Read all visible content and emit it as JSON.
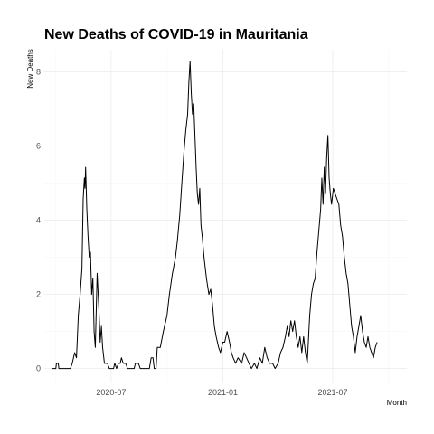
{
  "chart_data": {
    "type": "line",
    "title": "New Deaths of COVID-19 in Mauritania",
    "xlabel": "Month",
    "ylabel": "New Deaths",
    "xlim": [
      "2020-03-13",
      "2021-10-31"
    ],
    "ylim": [
      -0.4,
      8.6
    ],
    "x_ticks": [
      {
        "date": "2020-07-01",
        "label": "2020-07"
      },
      {
        "date": "2021-01-01",
        "label": "2021-01"
      },
      {
        "date": "2021-07-01",
        "label": "2021-07"
      }
    ],
    "y_ticks": [
      0,
      2,
      4,
      6,
      8
    ],
    "grid": true,
    "series": [
      {
        "color": "#000000",
        "points": [
          [
            "2020-03-26",
            0
          ],
          [
            "2020-04-01",
            0
          ],
          [
            "2020-04-02",
            0.14
          ],
          [
            "2020-04-05",
            0.14
          ],
          [
            "2020-04-06",
            0
          ],
          [
            "2020-04-25",
            0
          ],
          [
            "2020-04-28",
            0.14
          ],
          [
            "2020-05-02",
            0.43
          ],
          [
            "2020-05-05",
            0.29
          ],
          [
            "2020-05-08",
            1.43
          ],
          [
            "2020-05-11",
            2.0
          ],
          [
            "2020-05-14",
            2.7
          ],
          [
            "2020-05-16",
            4.57
          ],
          [
            "2020-05-18",
            5.14
          ],
          [
            "2020-05-19",
            4.86
          ],
          [
            "2020-05-20",
            5.43
          ],
          [
            "2020-05-22",
            4.3
          ],
          [
            "2020-05-24",
            3.57
          ],
          [
            "2020-05-26",
            3.0
          ],
          [
            "2020-05-28",
            3.14
          ],
          [
            "2020-05-30",
            2.0
          ],
          [
            "2020-06-01",
            2.43
          ],
          [
            "2020-06-03",
            1.0
          ],
          [
            "2020-06-05",
            0.57
          ],
          [
            "2020-06-08",
            2.57
          ],
          [
            "2020-06-11",
            1.57
          ],
          [
            "2020-06-13",
            0.71
          ],
          [
            "2020-06-15",
            1.14
          ],
          [
            "2020-06-17",
            0.57
          ],
          [
            "2020-06-20",
            0.14
          ],
          [
            "2020-06-25",
            0.14
          ],
          [
            "2020-06-28",
            0
          ],
          [
            "2020-07-05",
            0
          ],
          [
            "2020-07-07",
            0.14
          ],
          [
            "2020-07-10",
            0
          ],
          [
            "2020-07-13",
            0.14
          ],
          [
            "2020-07-16",
            0.14
          ],
          [
            "2020-07-18",
            0.29
          ],
          [
            "2020-07-21",
            0.14
          ],
          [
            "2020-07-25",
            0.14
          ],
          [
            "2020-07-28",
            0
          ],
          [
            "2020-08-08",
            0
          ],
          [
            "2020-08-10",
            0.14
          ],
          [
            "2020-08-15",
            0.14
          ],
          [
            "2020-08-18",
            0
          ],
          [
            "2020-09-02",
            0
          ],
          [
            "2020-09-05",
            0.29
          ],
          [
            "2020-09-08",
            0.29
          ],
          [
            "2020-09-10",
            0
          ],
          [
            "2020-09-13",
            0
          ],
          [
            "2020-09-15",
            0.57
          ],
          [
            "2020-09-20",
            0.57
          ],
          [
            "2020-09-25",
            1.0
          ],
          [
            "2020-10-01",
            1.43
          ],
          [
            "2020-10-05",
            2.0
          ],
          [
            "2020-10-10",
            2.57
          ],
          [
            "2020-10-15",
            3.0
          ],
          [
            "2020-10-18",
            3.43
          ],
          [
            "2020-10-22",
            4.14
          ],
          [
            "2020-10-26",
            5.14
          ],
          [
            "2020-10-29",
            5.86
          ],
          [
            "2020-11-01",
            6.43
          ],
          [
            "2020-11-04",
            6.86
          ],
          [
            "2020-11-06",
            7.71
          ],
          [
            "2020-11-08",
            8.29
          ],
          [
            "2020-11-10",
            7.43
          ],
          [
            "2020-11-12",
            6.86
          ],
          [
            "2020-11-14",
            7.14
          ],
          [
            "2020-11-16",
            6.29
          ],
          [
            "2020-11-18",
            5.43
          ],
          [
            "2020-11-20",
            4.71
          ],
          [
            "2020-11-22",
            4.43
          ],
          [
            "2020-11-24",
            4.86
          ],
          [
            "2020-11-26",
            3.86
          ],
          [
            "2020-11-28",
            3.57
          ],
          [
            "2020-12-01",
            3.0
          ],
          [
            "2020-12-05",
            2.43
          ],
          [
            "2020-12-09",
            2.0
          ],
          [
            "2020-12-12",
            2.14
          ],
          [
            "2020-12-15",
            1.71
          ],
          [
            "2020-12-18",
            1.14
          ],
          [
            "2020-12-21",
            0.86
          ],
          [
            "2020-12-25",
            0.57
          ],
          [
            "2020-12-28",
            0.43
          ],
          [
            "2021-01-01",
            0.71
          ],
          [
            "2021-01-04",
            0.71
          ],
          [
            "2021-01-08",
            1.0
          ],
          [
            "2021-01-12",
            0.71
          ],
          [
            "2021-01-15",
            0.43
          ],
          [
            "2021-01-18",
            0.29
          ],
          [
            "2021-01-22",
            0.14
          ],
          [
            "2021-01-26",
            0.29
          ],
          [
            "2021-02-01",
            0.14
          ],
          [
            "2021-02-05",
            0.43
          ],
          [
            "2021-02-09",
            0.29
          ],
          [
            "2021-02-13",
            0.14
          ],
          [
            "2021-02-17",
            0
          ],
          [
            "2021-02-22",
            0.14
          ],
          [
            "2021-02-26",
            0
          ],
          [
            "2021-03-03",
            0.29
          ],
          [
            "2021-03-07",
            0.14
          ],
          [
            "2021-03-11",
            0.57
          ],
          [
            "2021-03-15",
            0.29
          ],
          [
            "2021-03-19",
            0.14
          ],
          [
            "2021-03-24",
            0.14
          ],
          [
            "2021-03-28",
            0
          ],
          [
            "2021-04-02",
            0.14
          ],
          [
            "2021-04-06",
            0.43
          ],
          [
            "2021-04-10",
            0.57
          ],
          [
            "2021-04-14",
            0.86
          ],
          [
            "2021-04-17",
            1.14
          ],
          [
            "2021-04-20",
            0.86
          ],
          [
            "2021-04-23",
            1.29
          ],
          [
            "2021-04-26",
            1.0
          ],
          [
            "2021-04-29",
            1.29
          ],
          [
            "2021-05-02",
            0.86
          ],
          [
            "2021-05-05",
            0.57
          ],
          [
            "2021-05-08",
            0.86
          ],
          [
            "2021-05-11",
            0.43
          ],
          [
            "2021-05-14",
            0.86
          ],
          [
            "2021-05-17",
            0.43
          ],
          [
            "2021-05-20",
            0.14
          ],
          [
            "2021-05-24",
            1.43
          ],
          [
            "2021-05-27",
            2.0
          ],
          [
            "2021-05-30",
            2.29
          ],
          [
            "2021-06-02",
            2.43
          ],
          [
            "2021-06-05",
            3.14
          ],
          [
            "2021-06-08",
            3.71
          ],
          [
            "2021-06-11",
            4.29
          ],
          [
            "2021-06-13",
            5.14
          ],
          [
            "2021-06-15",
            4.43
          ],
          [
            "2021-06-17",
            5.43
          ],
          [
            "2021-06-19",
            4.71
          ],
          [
            "2021-06-21",
            5.71
          ],
          [
            "2021-06-23",
            6.29
          ],
          [
            "2021-06-25",
            5.14
          ],
          [
            "2021-06-27",
            4.71
          ],
          [
            "2021-06-29",
            4.43
          ],
          [
            "2021-07-02",
            4.86
          ],
          [
            "2021-07-05",
            4.71
          ],
          [
            "2021-07-08",
            4.57
          ],
          [
            "2021-07-11",
            4.43
          ],
          [
            "2021-07-14",
            3.86
          ],
          [
            "2021-07-17",
            3.57
          ],
          [
            "2021-07-20",
            3.0
          ],
          [
            "2021-07-23",
            2.57
          ],
          [
            "2021-07-26",
            2.29
          ],
          [
            "2021-07-29",
            1.71
          ],
          [
            "2021-08-01",
            1.14
          ],
          [
            "2021-08-04",
            0.86
          ],
          [
            "2021-08-07",
            0.43
          ],
          [
            "2021-08-10",
            0.86
          ],
          [
            "2021-08-13",
            1.14
          ],
          [
            "2021-08-16",
            1.43
          ],
          [
            "2021-08-19",
            1.0
          ],
          [
            "2021-08-22",
            0.71
          ],
          [
            "2021-08-25",
            0.57
          ],
          [
            "2021-08-28",
            0.86
          ],
          [
            "2021-08-31",
            0.57
          ],
          [
            "2021-09-03",
            0.43
          ],
          [
            "2021-09-06",
            0.29
          ],
          [
            "2021-09-09",
            0.57
          ],
          [
            "2021-09-12",
            0.71
          ]
        ]
      }
    ]
  }
}
